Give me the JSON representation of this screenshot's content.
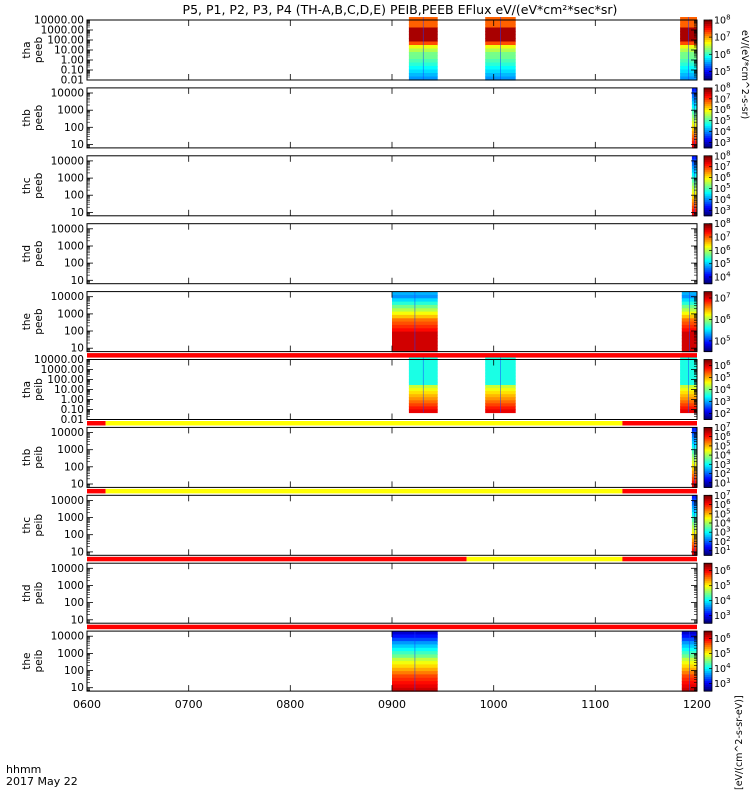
{
  "chart_data": {
    "type": "heatmap",
    "title": "P5, P1, P2, P3, P4 (TH-A,B,C,D,E) PEIB,PEEB EFlux eV/(eV*cm²*sec*sr)",
    "x_ticks": [
      "0600",
      "0700",
      "0800",
      "0900",
      "1000",
      "1100",
      "1200"
    ],
    "x_range_hours": [
      6,
      12
    ],
    "x_label_line1": "hhmm",
    "x_label_line2": "2017 May 22",
    "colorbar_label_electron": "eV/(eV*cm^2-s-sr)",
    "colorbar_label_ion": "[eV/(cm^2-s-sr-eV)]",
    "panels": [
      {
        "probe": "tha",
        "species": "peeb",
        "yticks": [
          "10000.00",
          "1000.00",
          "100.00",
          "10.00",
          "1.00",
          "0.10",
          "0.01"
        ],
        "ylog": [
          -2,
          4
        ],
        "cbar": [
          "10^8",
          "10^7",
          "10^6",
          "10^5"
        ],
        "cbar_log": [
          4.5,
          8
        ],
        "flag_bar": [],
        "data_blocks": [
          {
            "start": "0910",
            "end": "0927",
            "low": -2,
            "high": 4.3,
            "profile": "e_low"
          },
          {
            "start": "0955",
            "end": "1013",
            "low": -2,
            "high": 4.3,
            "profile": "e_low"
          },
          {
            "start": "1150",
            "end": "1200",
            "low": -2,
            "high": 4.3,
            "profile": "e_low"
          }
        ]
      },
      {
        "probe": "thb",
        "species": "peeb",
        "yticks": [
          "10000",
          "1000",
          "100",
          "10"
        ],
        "ylog": [
          0.8,
          4.3
        ],
        "cbar": [
          "10^8",
          "10^7",
          "10^6",
          "10^5",
          "10^4",
          "10^3"
        ],
        "cbar_log": [
          2.5,
          8
        ],
        "flag_bar": [],
        "data_blocks": [
          {
            "start": "1157",
            "end": "1200",
            "low": 0.8,
            "high": 4.3,
            "profile": "edge"
          }
        ]
      },
      {
        "probe": "thc",
        "species": "peeb",
        "yticks": [
          "10000",
          "1000",
          "100",
          "10"
        ],
        "ylog": [
          0.8,
          4.3
        ],
        "cbar": [
          "10^8",
          "10^7",
          "10^6",
          "10^5",
          "10^4",
          "10^3"
        ],
        "cbar_log": [
          2.5,
          8
        ],
        "flag_bar": [],
        "data_blocks": [
          {
            "start": "1157",
            "end": "1200",
            "low": 0.8,
            "high": 4.3,
            "profile": "edge"
          }
        ]
      },
      {
        "probe": "thd",
        "species": "peeb",
        "yticks": [
          "10000",
          "1000",
          "100",
          "10"
        ],
        "ylog": [
          0.8,
          4.3
        ],
        "cbar": [
          "10^8",
          "10^7",
          "10^6",
          "10^5",
          "10^4"
        ],
        "cbar_log": [
          3.5,
          8
        ],
        "flag_bar": [],
        "data_blocks": []
      },
      {
        "probe": "the",
        "species": "peeb",
        "yticks": [
          "10000",
          "1000",
          "100",
          "10"
        ],
        "ylog": [
          0.8,
          4.3
        ],
        "cbar": [
          "10^7",
          "10^6",
          "10^5"
        ],
        "cbar_log": [
          4.5,
          7.3
        ],
        "flag_bar": [
          [
            "0600",
            "1200",
            "red"
          ]
        ],
        "data_blocks": [
          {
            "start": "0900",
            "end": "0927",
            "low": 0.8,
            "high": 4.3,
            "profile": "e_high"
          },
          {
            "start": "1151",
            "end": "1200",
            "low": 0.8,
            "high": 4.3,
            "profile": "e_high"
          }
        ]
      },
      {
        "probe": "tha",
        "species": "peib",
        "yticks": [
          "10000.00",
          "1000.00",
          "100.00",
          "10.00",
          "1.00",
          "0.10",
          "0.01"
        ],
        "ylog": [
          -2,
          4
        ],
        "cbar": [
          "10^6",
          "10^5",
          "10^4",
          "10^3",
          "10^2"
        ],
        "cbar_log": [
          1.5,
          6.5
        ],
        "flag_bar": [
          [
            "0600",
            "0611",
            "red"
          ],
          [
            "0611",
            "1116",
            "yellow"
          ],
          [
            "1116",
            "1200",
            "red"
          ]
        ],
        "data_blocks": [
          {
            "start": "0910",
            "end": "0927",
            "low": -1.3,
            "high": 4.2,
            "profile": "ion"
          },
          {
            "start": "0955",
            "end": "1013",
            "low": -1.3,
            "high": 4.2,
            "profile": "ion"
          },
          {
            "start": "1150",
            "end": "1200",
            "low": -1.3,
            "high": 4.2,
            "profile": "ion"
          }
        ]
      },
      {
        "probe": "thb",
        "species": "peib",
        "yticks": [
          "10000",
          "1000",
          "100",
          "10"
        ],
        "ylog": [
          0.8,
          4.3
        ],
        "cbar": [
          "10^7",
          "10^6",
          "10^5",
          "10^4",
          "10^3",
          "10^2",
          "10^1"
        ],
        "cbar_log": [
          0.5,
          7
        ],
        "flag_bar": [
          [
            "0600",
            "0611",
            "red"
          ],
          [
            "0611",
            "1116",
            "yellow"
          ],
          [
            "1116",
            "1200",
            "red"
          ]
        ],
        "data_blocks": [
          {
            "start": "1157",
            "end": "1200",
            "low": 0.8,
            "high": 4.3,
            "profile": "edge"
          }
        ]
      },
      {
        "probe": "thc",
        "species": "peib",
        "yticks": [
          "10000",
          "1000",
          "100",
          "10"
        ],
        "ylog": [
          0.8,
          4.3
        ],
        "cbar": [
          "10^7",
          "10^6",
          "10^5",
          "10^4",
          "10^3",
          "10^2",
          "10^1"
        ],
        "cbar_log": [
          0.5,
          7
        ],
        "flag_bar": [
          [
            "0600",
            "0944",
            "red"
          ],
          [
            "0944",
            "1116",
            "yellow"
          ],
          [
            "1116",
            "1200",
            "red"
          ]
        ],
        "data_blocks": [
          {
            "start": "1157",
            "end": "1200",
            "low": 0.8,
            "high": 4.3,
            "profile": "edge"
          }
        ]
      },
      {
        "probe": "thd",
        "species": "peib",
        "yticks": [
          "10000",
          "1000",
          "100",
          "10"
        ],
        "ylog": [
          0.8,
          4.3
        ],
        "cbar": [
          "10^6",
          "10^5",
          "10^4",
          "10^3"
        ],
        "cbar_log": [
          2.5,
          6.5
        ],
        "flag_bar": [
          [
            "0600",
            "1200",
            "red"
          ]
        ],
        "data_blocks": []
      },
      {
        "probe": "the",
        "species": "peib",
        "yticks": [
          "10000",
          "1000",
          "100",
          "10"
        ],
        "ylog": [
          0.8,
          4.3
        ],
        "cbar": [
          "10^6",
          "10^5",
          "10^4",
          "10^3"
        ],
        "cbar_log": [
          2.5,
          6.5
        ],
        "flag_bar": [],
        "data_blocks": [
          {
            "start": "0900",
            "end": "0927",
            "low": 0.8,
            "high": 4.3,
            "profile": "ion_e"
          },
          {
            "start": "1151",
            "end": "1200",
            "low": 0.8,
            "high": 4.3,
            "profile": "ion_e"
          }
        ]
      }
    ]
  }
}
